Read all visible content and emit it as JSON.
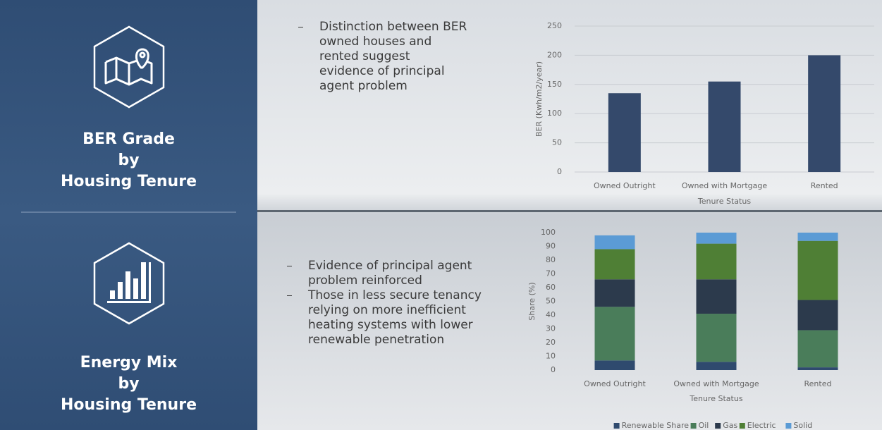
{
  "panels": [
    {
      "title_lines": [
        "BER Grade",
        "by",
        "Housing Tenure"
      ],
      "bullets": [
        "Distinction between BER owned houses and rented suggest evidence of principal agent problem"
      ]
    },
    {
      "title_lines": [
        "Energy Mix",
        "by",
        "Housing Tenure"
      ],
      "bullets": [
        "Evidence of principal agent problem reinforced",
        "Those in less secure tenancy relying on more inefficient heating systems with lower renewable penetration"
      ]
    }
  ],
  "chart_data": [
    {
      "type": "bar",
      "y_label": "BER (Kwh/m2/year)",
      "x_label": "Tenure Status",
      "categories": [
        "Owned Outright",
        "Owned with Mortgage",
        "Rented"
      ],
      "values": [
        135,
        155,
        200
      ],
      "color": "#34496b",
      "ylim": [
        0,
        250
      ],
      "yticks": [
        0,
        50,
        100,
        150,
        200,
        250
      ],
      "grid": true
    },
    {
      "type": "bar",
      "stacked": true,
      "y_label": "Share (%)",
      "x_label": "Tenure Status",
      "categories": [
        "Owned Outright",
        "Owned with Mortgage",
        "Rented"
      ],
      "series": [
        {
          "name": "Renewable Share",
          "color": "#2f4a6e",
          "values": [
            7,
            6,
            2
          ]
        },
        {
          "name": "Oil",
          "color": "#4a7d5a",
          "values": [
            39,
            35,
            27
          ]
        },
        {
          "name": "Gas",
          "color": "#2c3a4c",
          "values": [
            20,
            25,
            22
          ]
        },
        {
          "name": "Electric",
          "color": "#4f7f35",
          "values": [
            22,
            26,
            43
          ]
        },
        {
          "name": "Solid",
          "color": "#5b9bd5",
          "values": [
            10,
            8,
            6
          ]
        }
      ],
      "ylim": [
        0,
        100
      ],
      "yticks": [
        0,
        10,
        20,
        30,
        40,
        50,
        60,
        70,
        80,
        90,
        100
      ],
      "grid": false,
      "legend": "bottom"
    }
  ]
}
